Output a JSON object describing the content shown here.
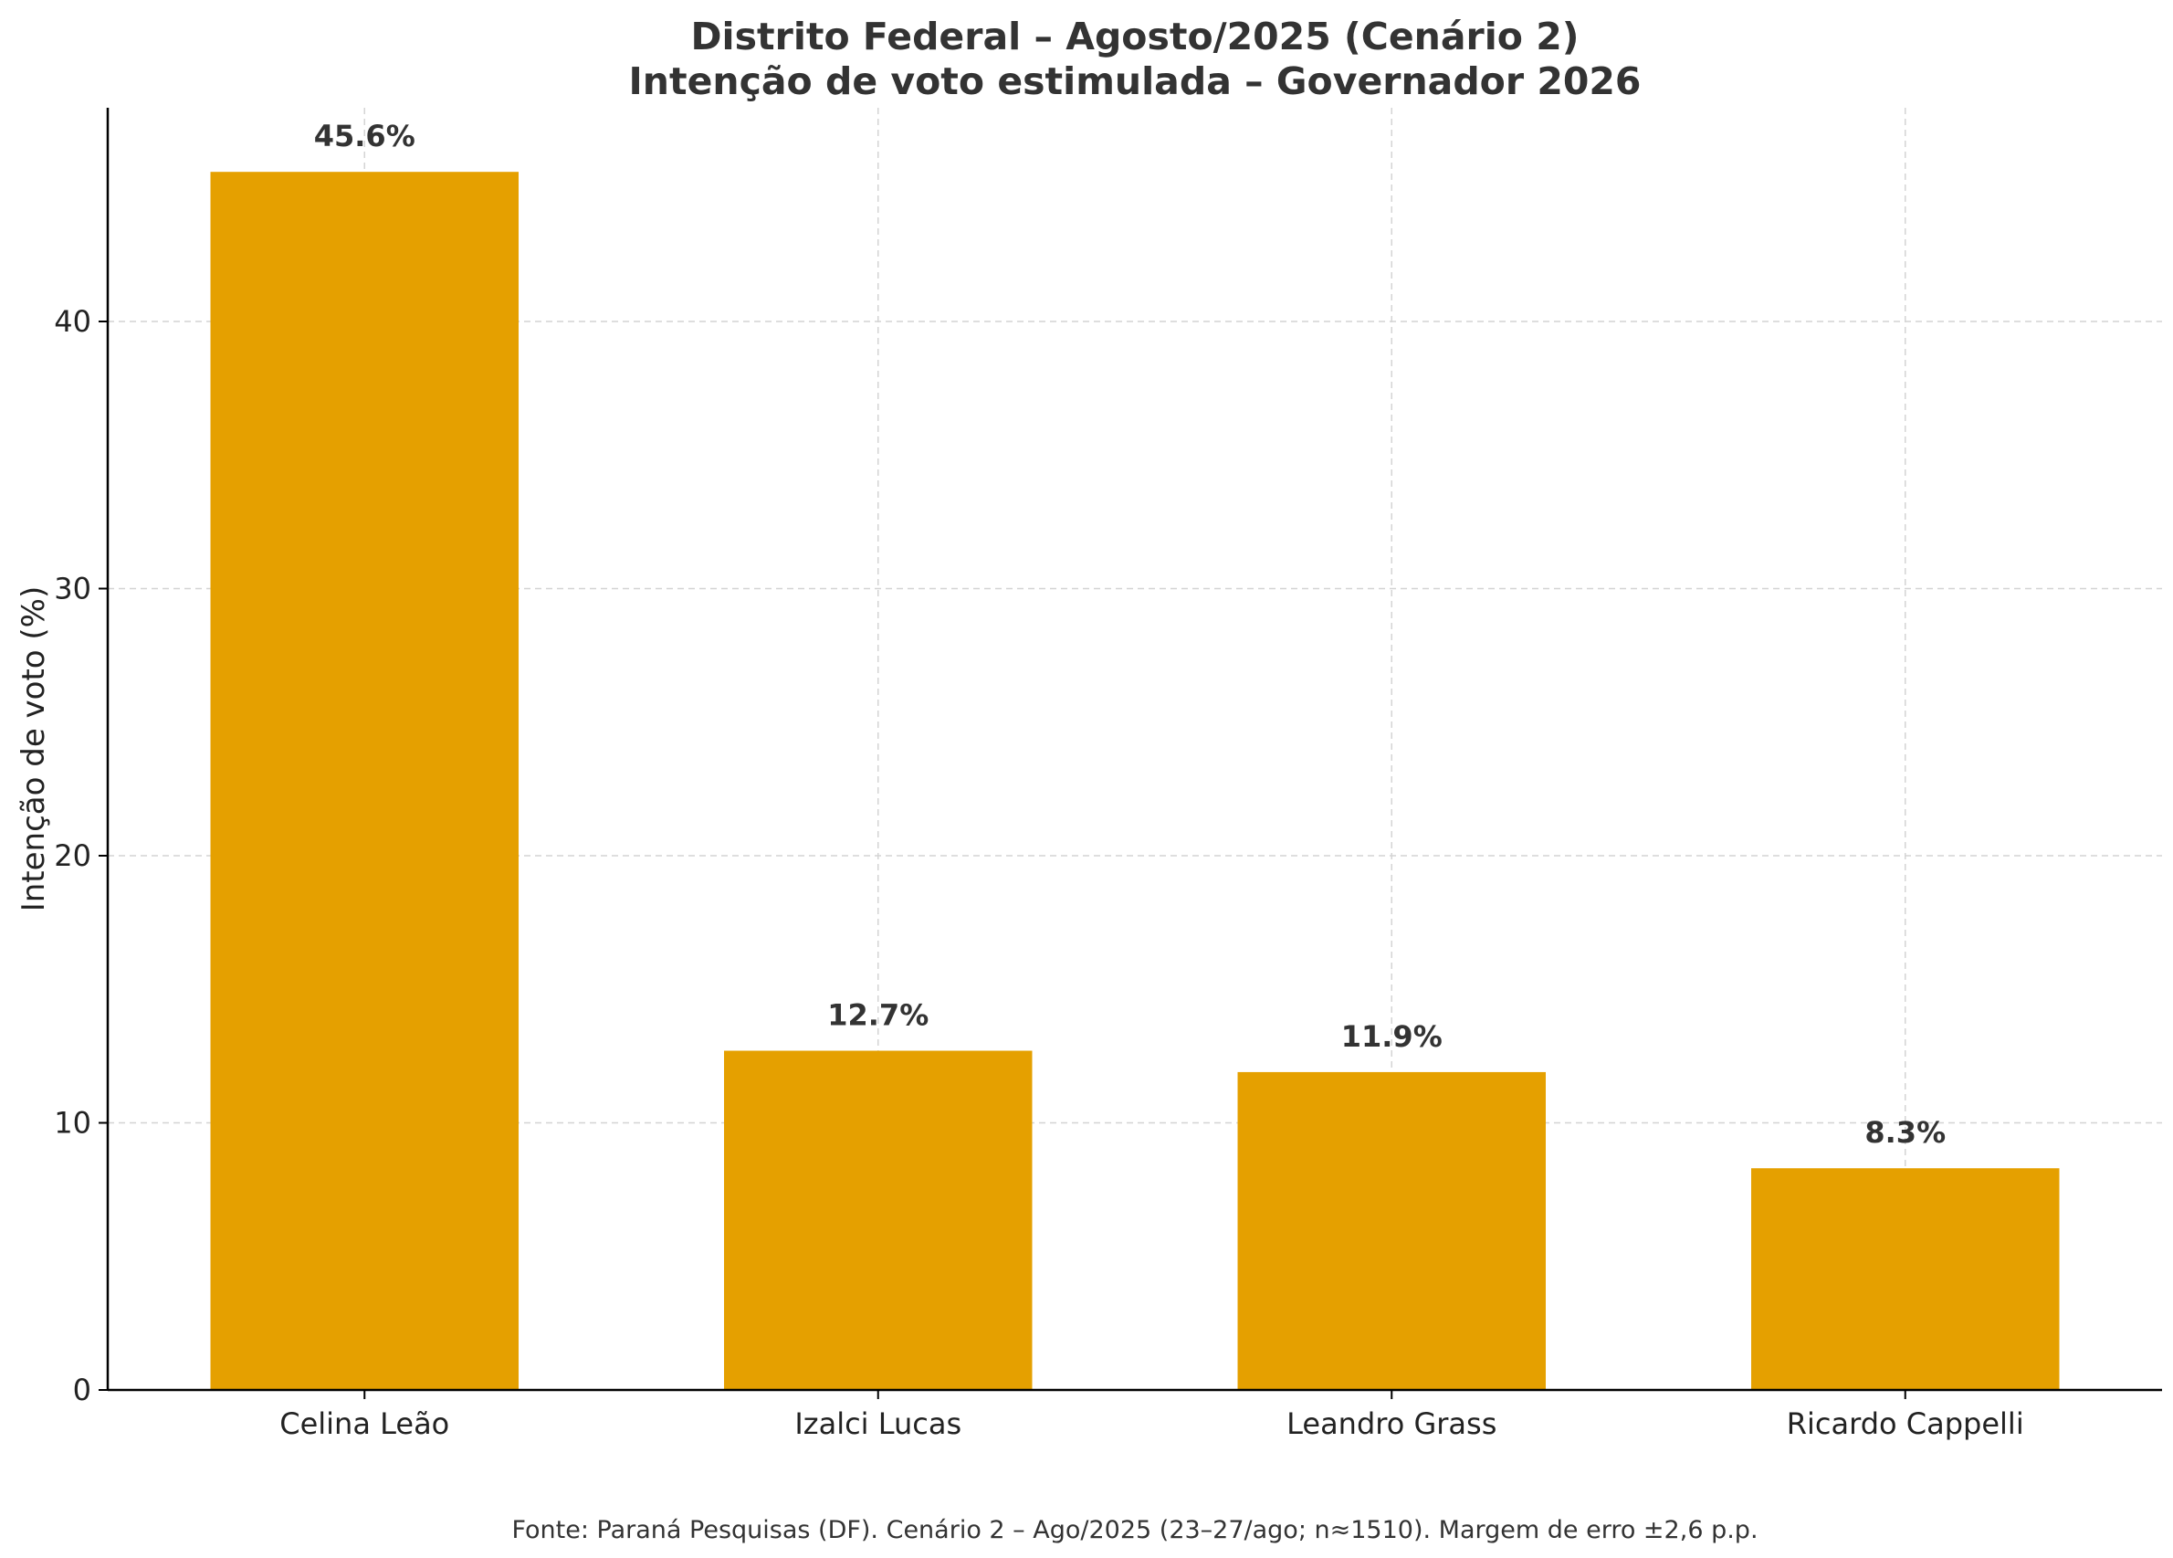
{
  "chart_data": {
    "type": "bar",
    "title": "Distrito Federal – Agosto/2025 (Cenário 2)",
    "subtitle": "Intenção de voto estimulada – Governador 2026",
    "xlabel": "",
    "ylabel": "Intenção de voto (%)",
    "categories": [
      "Celina Leão",
      "Izalci Lucas",
      "Leandro Grass",
      "Ricardo Cappelli"
    ],
    "values": [
      45.6,
      12.7,
      11.9,
      8.3
    ],
    "value_labels": [
      "45.6%",
      "12.7%",
      "11.9%",
      "8.3%"
    ],
    "ylim": [
      0,
      48
    ],
    "yticks": [
      0,
      10,
      20,
      30,
      40
    ],
    "ytick_labels": [
      "0",
      "10",
      "20",
      "30",
      "40"
    ],
    "grid": true,
    "bar_color": "#E5A000",
    "footnote": "Fonte: Paraná Pesquisas (DF). Cenário 2 – Ago/2025 (23–27/ago; n≈1510). Margem de erro ±2,6 p.p."
  }
}
